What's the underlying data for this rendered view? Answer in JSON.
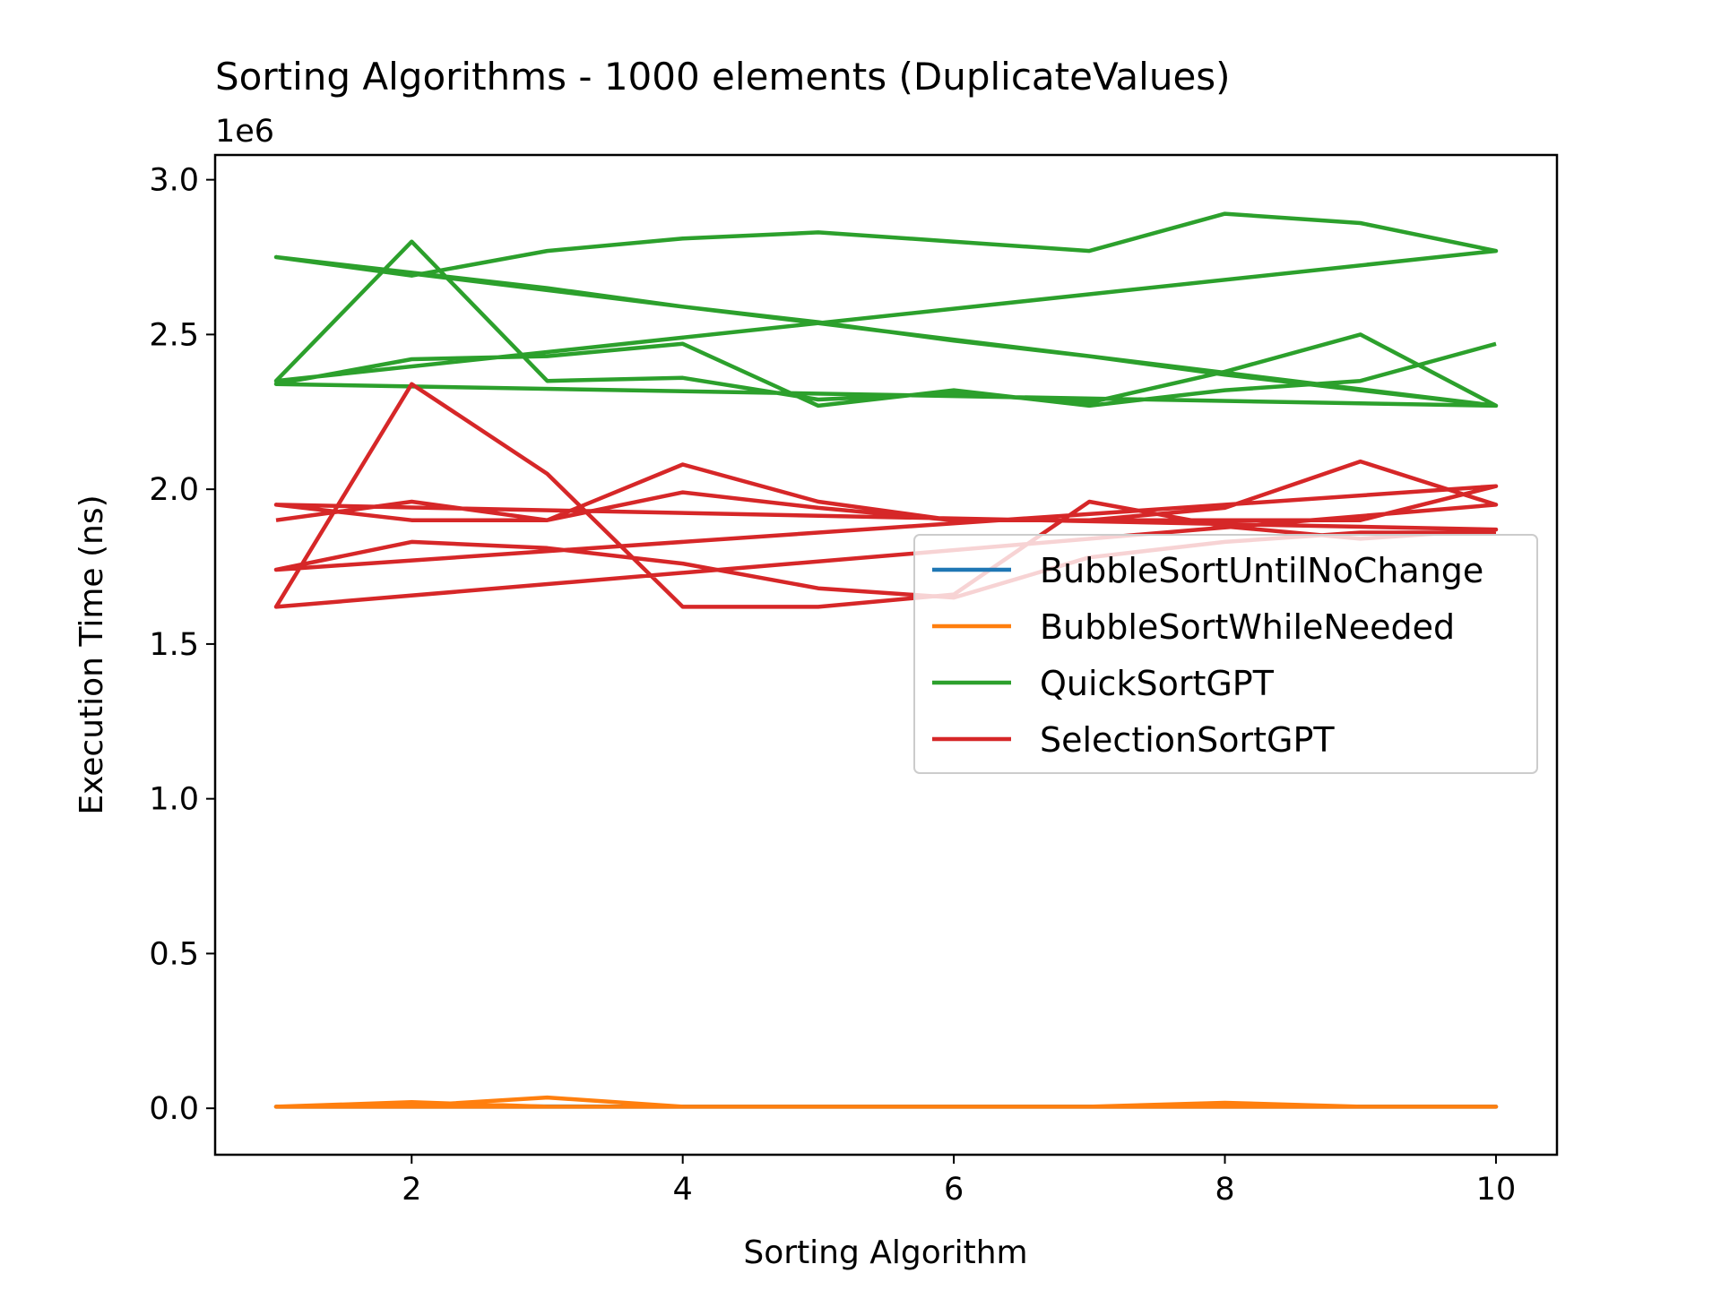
{
  "chart_data": {
    "type": "line",
    "title": "Sorting Algorithms - 1000 elements (DuplicateValues)",
    "xlabel": "Sorting Algorithm",
    "ylabel": "Execution Time (ns)",
    "y_offset_label": "1e6",
    "xlim": [
      0.55,
      10.45
    ],
    "ylim": [
      -150000,
      3080000
    ],
    "x_ticks": [
      2,
      4,
      6,
      8,
      10
    ],
    "x_tick_labels": [
      "2",
      "4",
      "6",
      "8",
      "10"
    ],
    "y_ticks": [
      0,
      500000,
      1000000,
      1500000,
      2000000,
      2500000,
      3000000
    ],
    "y_tick_labels": [
      "0.0",
      "0.5",
      "1.0",
      "1.5",
      "2.0",
      "2.5",
      "3.0"
    ],
    "grid": false,
    "legend_position": "center-right",
    "series": [
      {
        "name": "BubbleSortUntilNoChange",
        "color": "#1f77b4",
        "x": [
          1,
          2,
          3,
          4,
          5,
          6,
          7,
          8,
          9,
          10,
          1,
          2,
          3,
          4,
          5,
          6,
          7,
          8,
          9,
          10
        ],
        "y": [
          5000,
          8000,
          6000,
          5000,
          5000,
          5000,
          5000,
          7000,
          5000,
          5000,
          5000,
          6000,
          5000,
          5000,
          5000,
          5000,
          5000,
          6000,
          5000,
          5000
        ]
      },
      {
        "name": "BubbleSortWhileNeeded",
        "color": "#ff7f0e",
        "x": [
          1,
          2,
          3,
          4,
          5,
          6,
          7,
          8,
          9,
          10,
          1,
          2,
          3,
          4,
          5,
          6,
          7,
          8,
          9,
          10,
          1,
          2,
          3,
          4,
          5,
          6,
          7,
          8,
          9,
          10
        ],
        "y": [
          5000,
          20000,
          5000,
          5000,
          5000,
          5000,
          5000,
          18000,
          5000,
          5000,
          5000,
          8000,
          35000,
          5000,
          5000,
          5000,
          5000,
          6000,
          5000,
          5000,
          5000,
          5000,
          5000,
          5000,
          5000,
          5000,
          5000,
          5000,
          5000,
          5000
        ]
      },
      {
        "name": "QuickSortGPT",
        "color": "#2ca02c",
        "x": [
          1,
          2,
          3,
          4,
          5,
          6,
          7,
          8,
          9,
          10,
          1,
          2,
          3,
          4,
          5,
          6,
          7,
          8,
          9,
          10,
          1,
          2,
          3,
          4,
          5,
          6,
          7,
          8,
          9,
          10,
          1,
          2,
          3,
          4,
          5,
          6,
          7,
          8,
          9,
          10
        ],
        "y": [
          2750000,
          2690000,
          2770000,
          2810000,
          2830000,
          2800000,
          2770000,
          2890000,
          2860000,
          2770000,
          2350000,
          2800000,
          2350000,
          2360000,
          2290000,
          2310000,
          2280000,
          2380000,
          2500000,
          2270000,
          2750000,
          2700000,
          2650000,
          2590000,
          2540000,
          2480000,
          2430000,
          2370000,
          2320000,
          2270000,
          2340000,
          2420000,
          2430000,
          2470000,
          2270000,
          2320000,
          2270000,
          2320000,
          2350000,
          2470000
        ]
      },
      {
        "name": "SelectionSortGPT",
        "color": "#d62728",
        "x": [
          1,
          2,
          3,
          4,
          5,
          6,
          7,
          8,
          9,
          10,
          1,
          2,
          3,
          4,
          5,
          6,
          7,
          8,
          9,
          10,
          1,
          2,
          3,
          4,
          5,
          6,
          7,
          8,
          9,
          10,
          1,
          2,
          3,
          4,
          5,
          6,
          7,
          8,
          9,
          10
        ],
        "y": [
          1900000,
          1960000,
          1900000,
          2080000,
          1960000,
          1900000,
          1900000,
          1940000,
          2090000,
          1950000,
          1620000,
          2340000,
          2050000,
          1620000,
          1620000,
          1660000,
          1960000,
          1880000,
          1840000,
          1870000,
          1950000,
          1900000,
          1900000,
          1990000,
          1940000,
          1900000,
          1900000,
          1900000,
          1900000,
          2010000,
          1740000,
          1830000,
          1810000,
          1760000,
          1680000,
          1650000,
          1780000,
          1830000,
          1860000,
          1860000
        ]
      }
    ]
  }
}
